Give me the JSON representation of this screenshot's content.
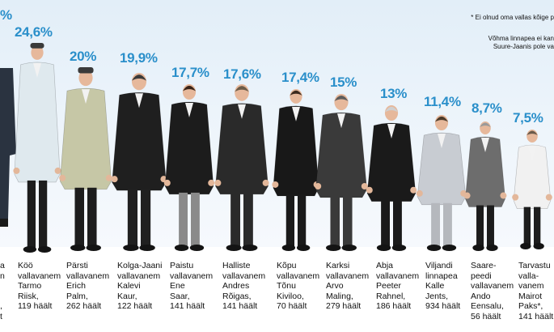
{
  "notes": {
    "line1": "* Ei olnud oma vallas kõige p",
    "line2": "Võhma linnapea ei kan",
    "line3": "Suure-Jaanis pole va"
  },
  "partial_left": {
    "percent": "%",
    "caption": "a\nn\n\n\n,\nt"
  },
  "people": [
    {
      "percent": "24,6%",
      "caption": "Köö\nvallavanem\nTarmo\nRiisk,\n119 häält",
      "coat": "#dfe9ee",
      "pants": "#1d1d1d",
      "hair": "#5a4c3a",
      "hat": true
    },
    {
      "percent": "20%",
      "caption": "Pärsti\nvallavanem\nErich\nPalm,\n262 häält",
      "coat": "#c6c7a6",
      "pants": "#1d1d1d",
      "hair": "#6a6a6a",
      "hat": true
    },
    {
      "percent": "19,9%",
      "caption": "Kolga-Jaani\nvallavanem\nKalevi\nKaur,\n122 häält",
      "coat": "#1f1f1f",
      "pants": "#202020",
      "hair": "#3a3a3a",
      "hat": false
    },
    {
      "percent": "17,7%",
      "caption": "Paistu\nvallavanem\nEne\nSaar,\n141 häält",
      "coat": "#1c1c1c",
      "pants": "#8a8a8a",
      "hair": "#3a2418",
      "hat": false
    },
    {
      "percent": "17,6%",
      "caption": "Halliste\nvallavanem\nAndres\nRõigas,\n141 häält",
      "coat": "#2a2a2a",
      "pants": "#2a2a2a",
      "hair": "#6b5b48",
      "hat": false
    },
    {
      "percent": "17,4%",
      "caption": "Kõpu\nvallavanem\nTõnu\nKiviloo,\n70 häält",
      "coat": "#181818",
      "pants": "#1a1a1a",
      "hair": "#3b2a1e",
      "hat": false
    },
    {
      "percent": "15%",
      "caption": "Karksi\nvallavanem\nArvo\nMaling,\n279 häält",
      "coat": "#3a3a3a",
      "pants": "#3a3a3a",
      "hair": "#5c5c5c",
      "hat": false
    },
    {
      "percent": "13%",
      "caption": "Abja\nvallavanem\nPeeter\nRahnel,\n186 häält",
      "coat": "#1a1a1a",
      "pants": "#1a1a1a",
      "hair": "#d0d0d0",
      "hat": false
    },
    {
      "percent": "11,4%",
      "caption": "Viljandi\nlinnapea\nKalle\nJents,\n934 häält",
      "coat": "#c8ccd2",
      "pants": "#b5b8bd",
      "hair": "#4a3a2a",
      "hat": false
    },
    {
      "percent": "8,7%",
      "caption": "Saare-\npeedi\nvallavanem\nAndo\nEensalu,\n56 häält",
      "coat": "#6d6d6d",
      "pants": "#1c1c1c",
      "hair": "#9a9a9a",
      "hat": false
    },
    {
      "percent": "7,5%",
      "caption": "Tarvastu\nvalla-\nvanem\nMairot\nPaks*,\n141 häält",
      "coat": "#f1f1f1",
      "pants": "#1d1d1d",
      "hair": "#6a5a4a",
      "hat": false
    }
  ]
}
